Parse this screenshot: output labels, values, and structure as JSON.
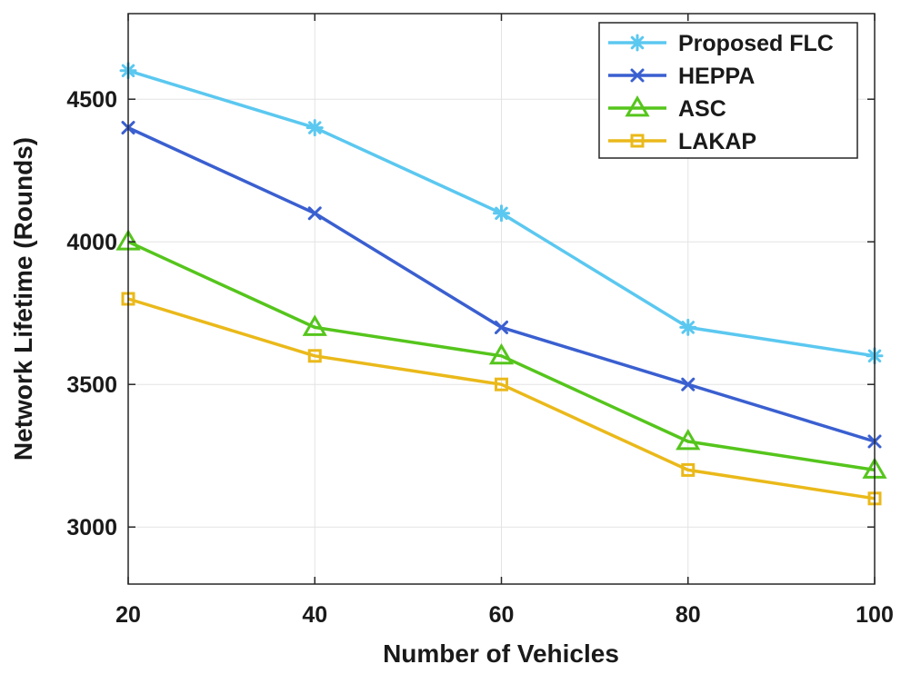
{
  "chart_data": {
    "type": "line",
    "title": "",
    "xlabel": "Number of Vehicles",
    "ylabel": "Network Lifetime (Rounds)",
    "x": [
      20,
      40,
      60,
      80,
      100
    ],
    "xticks": [
      20,
      40,
      60,
      80,
      100
    ],
    "xtick_labels": [
      "20",
      "40",
      "60",
      "80",
      "100"
    ],
    "yticks": [
      3000,
      3500,
      4000,
      4500
    ],
    "ytick_labels": [
      "3000",
      "3500",
      "4000",
      "4500"
    ],
    "xlim": [
      20,
      100
    ],
    "ylim": [
      2800,
      4800
    ],
    "grid": true,
    "legend_position": "top-right",
    "series": [
      {
        "name": "Proposed FLC",
        "color": "#5bc8f0",
        "marker": "asterisk",
        "values": [
          4600,
          4400,
          4100,
          3700,
          3600
        ]
      },
      {
        "name": "HEPPA",
        "color": "#3a5fd0",
        "marker": "x",
        "values": [
          4400,
          4100,
          3700,
          3500,
          3300
        ]
      },
      {
        "name": "ASC",
        "color": "#55c51c",
        "marker": "triangle",
        "values": [
          4000,
          3700,
          3600,
          3300,
          3200
        ]
      },
      {
        "name": "LAKAP",
        "color": "#eab91a",
        "marker": "square",
        "values": [
          3800,
          3600,
          3500,
          3200,
          3100
        ]
      }
    ]
  }
}
